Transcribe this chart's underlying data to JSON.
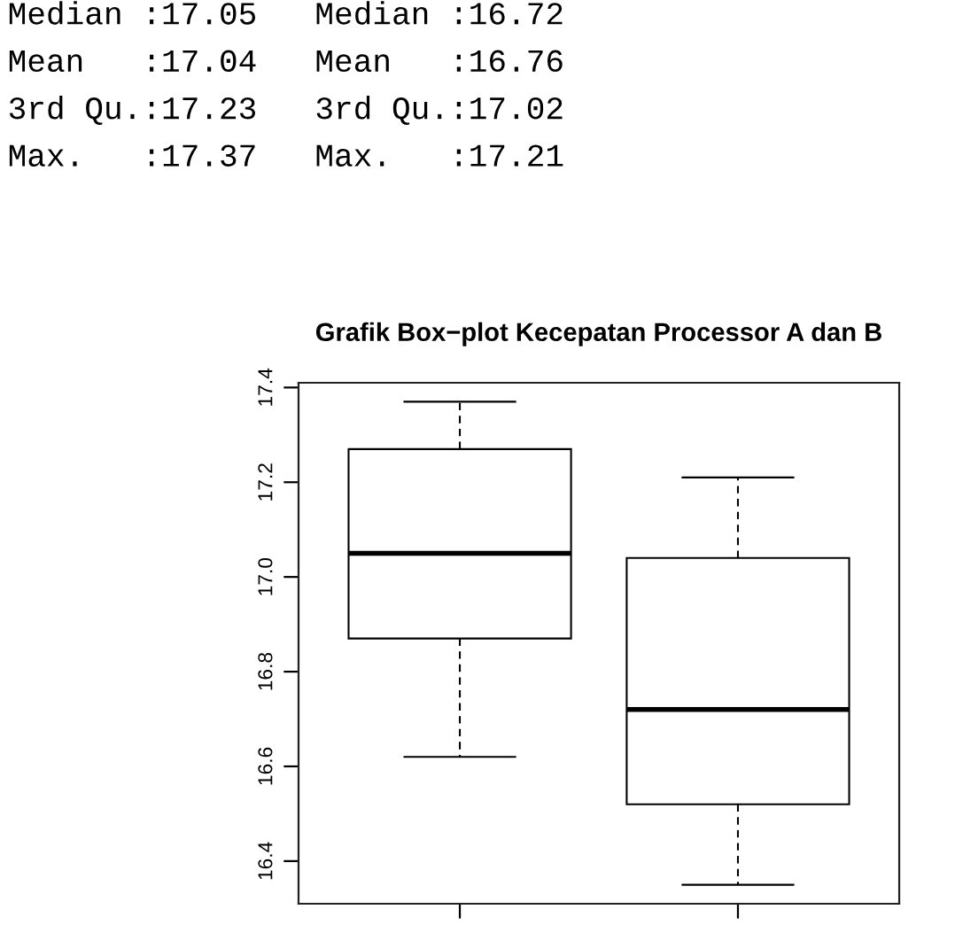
{
  "chart_data": {
    "type": "box",
    "title": "Grafik Box−plot Kecepatan Processor A dan B",
    "categories": [
      null,
      null
    ],
    "boxes": [
      {
        "low": 16.62,
        "q1": 16.87,
        "median": 17.05,
        "q3": 17.27,
        "high": 17.37
      },
      {
        "low": 16.35,
        "q1": 16.52,
        "median": 16.72,
        "q3": 17.04,
        "high": 17.21
      }
    ],
    "ylim": [
      16.31,
      17.41
    ],
    "yticks": [
      16.4,
      16.6,
      16.8,
      {
        "value": 17,
        "label": "17.0"
      },
      17.2,
      17.4
    ],
    "tick_labels": "y",
    "grid": false,
    "annotations": [
      "Median :17.05   Median :16.72",
      "Mean   :17.04   Mean   :16.76",
      "3rd Qu.:17.23   3rd Qu.:17.02",
      "Max.   :17.37   Max.   :17.21"
    ]
  }
}
